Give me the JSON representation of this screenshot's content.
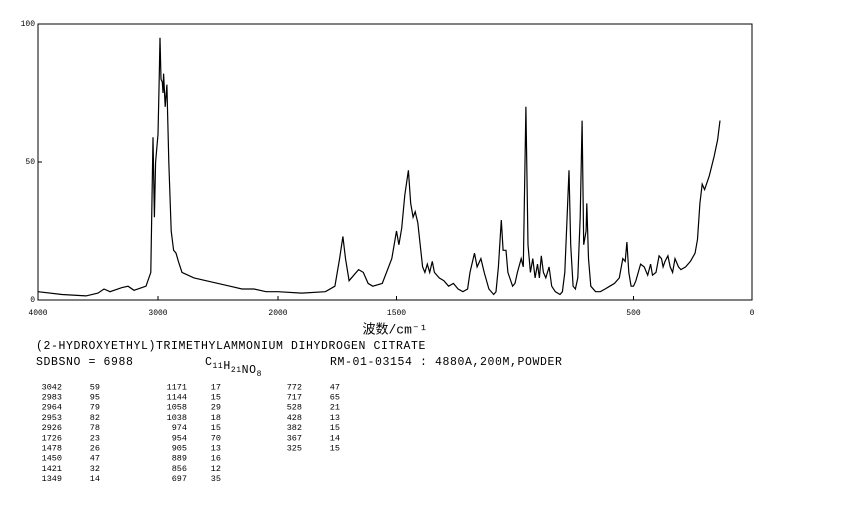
{
  "chart_data": {
    "type": "line",
    "color": "#000000",
    "xlabel": "波数/cm⁻¹",
    "xlim": [
      4000,
      0
    ],
    "x_scale_change": 2000,
    "xticks": [
      4000,
      3000,
      2000,
      1500,
      500,
      0
    ],
    "ylim": [
      0,
      100
    ],
    "yticks": [
      0,
      50,
      100
    ],
    "x": [
      4000,
      3800,
      3600,
      3500,
      3450,
      3400,
      3300,
      3250,
      3200,
      3100,
      3060,
      3042,
      3030,
      3020,
      3000,
      2990,
      2983,
      2975,
      2964,
      2958,
      2953,
      2940,
      2926,
      2910,
      2890,
      2870,
      2850,
      2830,
      2800,
      2700,
      2600,
      2500,
      2400,
      2300,
      2200,
      2100,
      2000,
      1900,
      1800,
      1760,
      1740,
      1726,
      1715,
      1700,
      1680,
      1660,
      1640,
      1620,
      1600,
      1560,
      1520,
      1500,
      1490,
      1478,
      1465,
      1450,
      1440,
      1430,
      1421,
      1410,
      1400,
      1390,
      1380,
      1370,
      1360,
      1349,
      1340,
      1320,
      1300,
      1280,
      1260,
      1240,
      1220,
      1200,
      1190,
      1171,
      1160,
      1144,
      1130,
      1110,
      1090,
      1080,
      1070,
      1058,
      1050,
      1038,
      1030,
      1010,
      1000,
      990,
      974,
      965,
      954,
      945,
      935,
      925,
      915,
      905,
      897,
      889,
      880,
      870,
      856,
      845,
      830,
      810,
      800,
      790,
      780,
      772,
      765,
      755,
      745,
      735,
      725,
      717,
      710,
      700,
      697,
      690,
      680,
      660,
      640,
      620,
      600,
      580,
      560,
      545,
      535,
      528,
      520,
      510,
      500,
      490,
      470,
      455,
      440,
      428,
      420,
      405,
      392,
      382,
      375,
      367,
      355,
      345,
      335,
      325,
      310,
      300,
      280,
      260,
      240,
      230,
      220,
      210,
      200,
      180,
      160,
      145,
      135
    ],
    "values": [
      3,
      2,
      1.5,
      2.5,
      4,
      3,
      4.5,
      5,
      3.5,
      5,
      10,
      59,
      30,
      50,
      60,
      80,
      95,
      80,
      79,
      75,
      82,
      70,
      78,
      50,
      25,
      18,
      17,
      14,
      10,
      8,
      7,
      6,
      5,
      4,
      4,
      3,
      3,
      2.5,
      3,
      5,
      15,
      23,
      15,
      7,
      9,
      11,
      10,
      6,
      5,
      6,
      15,
      25,
      20,
      26,
      38,
      47,
      35,
      30,
      32,
      28,
      20,
      12,
      10,
      13,
      10,
      14,
      10,
      8,
      7,
      5,
      6,
      4,
      3,
      4,
      10,
      17,
      12,
      15,
      10,
      4,
      2,
      3,
      12,
      29,
      18,
      18,
      10,
      5,
      6,
      10,
      15,
      12,
      70,
      20,
      10,
      15,
      8,
      13,
      8,
      16,
      10,
      8,
      12,
      5,
      3,
      2,
      3,
      10,
      30,
      47,
      20,
      5,
      4,
      8,
      30,
      65,
      20,
      25,
      35,
      15,
      5,
      3,
      3,
      4,
      5,
      6,
      8,
      15,
      14,
      21,
      10,
      5,
      5,
      7,
      13,
      12,
      9,
      13,
      9,
      10,
      16,
      15,
      12,
      14,
      16,
      12,
      10,
      15,
      12,
      11,
      12,
      14,
      17,
      22,
      35,
      42,
      40,
      45,
      52,
      58,
      65
    ]
  },
  "compound": "(2-HYDROXYETHYL)TRIMETHYLAMMONIUM DIHYDROGEN CITRATE",
  "sdbs_no": "SDBSNO = 6988",
  "formula": "C11H21NO8",
  "measurement": "RM-01-03154 : 4880A,200M,POWDER",
  "peak_table": [
    [
      [
        3042,
        59
      ],
      [
        2983,
        95
      ],
      [
        2964,
        79
      ],
      [
        2953,
        82
      ],
      [
        2926,
        78
      ],
      [
        1726,
        23
      ],
      [
        1478,
        26
      ],
      [
        1450,
        47
      ],
      [
        1421,
        32
      ],
      [
        1349,
        14
      ]
    ],
    [
      [
        1171,
        17
      ],
      [
        1144,
        15
      ],
      [
        1058,
        29
      ],
      [
        1038,
        18
      ],
      [
        974,
        15
      ],
      [
        954,
        70
      ],
      [
        905,
        13
      ],
      [
        889,
        16
      ],
      [
        856,
        12
      ],
      [
        697,
        35
      ]
    ],
    [
      [
        772,
        47
      ],
      [
        717,
        65
      ],
      [
        528,
        21
      ],
      [
        428,
        13
      ],
      [
        382,
        15
      ],
      [
        367,
        14
      ],
      [
        325,
        15
      ]
    ]
  ]
}
